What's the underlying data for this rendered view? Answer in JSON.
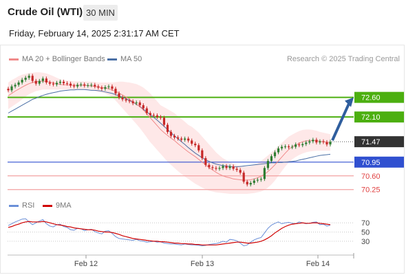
{
  "header": {
    "title": "Crude Oil (WTI)",
    "timeframe": "30 MIN",
    "datetime": "Friday, February 14, 2025 2:31:17 AM CET"
  },
  "legend": {
    "ma20": "MA 20 + Bollinger Bands",
    "ma50": "MA 50",
    "credit": "Research © 2025 Trading Central",
    "rsi": "RSI",
    "rsi_ma": "9MA"
  },
  "colors": {
    "up": "#2e7d32",
    "down": "#c62828",
    "ma20": "#f08a8a",
    "ma50": "#4a6fa5",
    "resistance": "#4caf10",
    "pivot": "#3050d0",
    "support": "#f2a0a0",
    "price": "#333333",
    "arrow": "#2f5e9e",
    "rsi": "#6a8fd8",
    "rsi_ma": "#d00000"
  },
  "chart_data": {
    "type": "candlestick",
    "x_ticks": [
      "Feb 12",
      "Feb 13",
      "Feb 14"
    ],
    "levels": [
      {
        "value": 72.6,
        "label": "72.60",
        "kind": "resistance"
      },
      {
        "value": 72.1,
        "label": "72.10",
        "kind": "resistance"
      },
      {
        "value": 71.47,
        "label": "71.47",
        "kind": "price"
      },
      {
        "value": 70.95,
        "label": "70.95",
        "kind": "pivot"
      },
      {
        "value": 70.6,
        "label": "70.60",
        "kind": "support"
      },
      {
        "value": 70.25,
        "label": "70.25",
        "kind": "support"
      }
    ],
    "ylim": [
      70.0,
      73.4
    ],
    "close": [
      72.78,
      72.88,
      72.92,
      72.98,
      73.05,
      73.1,
      73.15,
      73.02,
      72.95,
      73.02,
      73.08,
      72.98,
      72.95,
      72.93,
      72.97,
      73.0,
      72.96,
      72.95,
      72.9,
      72.88,
      72.92,
      72.93,
      72.9,
      72.91,
      72.92,
      72.88,
      72.85,
      72.82,
      72.86,
      72.88,
      72.82,
      72.7,
      72.6,
      72.55,
      72.52,
      72.5,
      72.45,
      72.47,
      72.4,
      72.32,
      72.2,
      72.15,
      72.14,
      72.1,
      72.08,
      71.9,
      71.72,
      71.62,
      71.58,
      71.55,
      71.52,
      71.55,
      71.5,
      71.42,
      71.38,
      71.25,
      71.05,
      70.88,
      70.82,
      70.8,
      70.78,
      70.8,
      70.85,
      70.8,
      70.84,
      70.78,
      70.75,
      70.68,
      70.45,
      70.38,
      70.42,
      70.48,
      70.5,
      70.52,
      70.8,
      70.98,
      71.1,
      71.2,
      71.3,
      71.34,
      71.35,
      71.33,
      71.34,
      71.4,
      71.38,
      71.41,
      71.45,
      71.48,
      71.52,
      71.45,
      71.48,
      71.46,
      71.4,
      71.47
    ],
    "bollinger_upper": [
      72.98,
      73.04,
      73.09,
      73.14,
      73.18,
      73.2,
      73.22,
      73.23,
      73.24,
      73.24,
      73.23,
      73.21,
      73.18,
      73.14,
      73.1,
      73.06,
      73.04,
      73.03,
      73.02,
      73.01,
      73.01,
      73.01,
      73.01,
      73.0,
      73.0,
      72.99,
      72.98,
      72.98,
      72.98,
      72.98,
      72.98,
      72.99,
      73.0,
      73.0,
      72.99,
      72.98,
      72.96,
      72.94,
      72.9,
      72.85,
      72.78,
      72.7,
      72.6,
      72.5,
      72.4,
      72.35,
      72.3,
      72.25,
      72.2,
      72.12,
      72.05,
      71.98,
      71.9,
      71.85,
      71.78,
      71.7,
      71.6,
      71.5,
      71.4,
      71.3,
      71.2,
      71.12,
      71.05,
      71.0,
      70.95,
      70.9,
      70.88,
      70.86,
      70.84,
      70.84,
      70.85,
      70.88,
      70.92,
      70.98,
      71.05,
      71.12,
      71.2,
      71.28,
      71.36,
      71.44,
      71.52,
      71.6,
      71.65,
      71.7,
      71.74,
      71.77,
      71.78,
      71.78,
      71.77,
      71.75,
      71.72,
      71.7,
      71.68,
      71.66
    ],
    "bollinger_lower": [
      72.3,
      72.36,
      72.42,
      72.48,
      72.55,
      72.62,
      72.68,
      72.72,
      72.76,
      72.78,
      72.8,
      72.8,
      72.8,
      72.8,
      72.8,
      72.8,
      72.8,
      72.8,
      72.8,
      72.8,
      72.8,
      72.8,
      72.8,
      72.79,
      72.78,
      72.76,
      72.74,
      72.72,
      72.7,
      72.66,
      72.6,
      72.52,
      72.42,
      72.32,
      72.22,
      72.12,
      72.02,
      71.92,
      71.82,
      71.7,
      71.58,
      71.46,
      71.36,
      71.26,
      71.16,
      71.06,
      70.96,
      70.88,
      70.8,
      70.72,
      70.65,
      70.58,
      70.52,
      70.46,
      70.4,
      70.35,
      70.3,
      70.26,
      70.22,
      70.2,
      70.18,
      70.17,
      70.16,
      70.15,
      70.14,
      70.14,
      70.14,
      70.14,
      70.14,
      70.14,
      70.15,
      70.16,
      70.18,
      70.2,
      70.24,
      70.3,
      70.38,
      70.48,
      70.6,
      70.72,
      70.84,
      70.94,
      71.02,
      71.08,
      71.13,
      71.17,
      71.2,
      71.22,
      71.23,
      71.24,
      71.24,
      71.24,
      71.24,
      71.24
    ],
    "ma20": [
      72.64,
      72.7,
      72.76,
      72.81,
      72.86,
      72.91,
      72.95,
      72.98,
      73.0,
      73.01,
      73.01,
      73.01,
      72.99,
      72.97,
      72.95,
      72.93,
      72.92,
      72.92,
      72.91,
      72.91,
      72.91,
      72.91,
      72.91,
      72.9,
      72.89,
      72.88,
      72.86,
      72.85,
      72.84,
      72.82,
      72.79,
      72.76,
      72.71,
      72.66,
      72.61,
      72.55,
      72.49,
      72.43,
      72.36,
      72.28,
      72.18,
      72.08,
      71.98,
      71.88,
      71.78,
      71.7,
      71.63,
      71.56,
      71.5,
      71.42,
      71.35,
      71.28,
      71.21,
      71.15,
      71.09,
      71.02,
      70.95,
      70.88,
      70.81,
      70.75,
      70.69,
      70.64,
      70.6,
      70.57,
      70.55,
      70.52,
      70.51,
      70.5,
      70.49,
      70.49,
      70.5,
      70.52,
      70.55,
      70.59,
      70.64,
      70.71,
      70.79,
      70.88,
      70.98,
      71.08,
      71.18,
      71.27,
      71.34,
      71.39,
      71.43,
      71.47,
      71.49,
      71.5,
      71.5,
      71.5,
      71.48,
      71.47,
      71.46,
      71.45
    ],
    "ma50": [
      72.2,
      72.25,
      72.3,
      72.35,
      72.4,
      72.45,
      72.5,
      72.55,
      72.58,
      72.62,
      72.65,
      72.68,
      72.7,
      72.72,
      72.74,
      72.76,
      72.77,
      72.78,
      72.79,
      72.79,
      72.8,
      72.8,
      72.8,
      72.79,
      72.78,
      72.78,
      72.77,
      72.76,
      72.74,
      72.72,
      72.7,
      72.67,
      72.64,
      72.6,
      72.57,
      72.52,
      72.48,
      72.42,
      72.37,
      72.3,
      72.23,
      72.16,
      72.09,
      72.02,
      71.94,
      71.86,
      71.78,
      71.7,
      71.62,
      71.55,
      71.47,
      71.4,
      71.32,
      71.25,
      71.18,
      71.12,
      71.06,
      71.01,
      70.97,
      70.93,
      70.9,
      70.88,
      70.86,
      70.85,
      70.84,
      70.83,
      70.83,
      70.84,
      70.85,
      70.86,
      70.87,
      70.88,
      70.89,
      70.9,
      70.91,
      70.92,
      70.93,
      70.93,
      70.94,
      70.94,
      70.95,
      70.96,
      70.97,
      70.98,
      71.0,
      71.02,
      71.04,
      71.06,
      71.08,
      71.1,
      71.12,
      71.13,
      71.14,
      71.15
    ],
    "projection": {
      "from": 71.47,
      "to": 72.6
    },
    "rsi": {
      "ylim": [
        0,
        100
      ],
      "levels": [
        70,
        50,
        30
      ],
      "rsi": [
        64,
        68,
        72,
        75,
        78,
        79,
        72,
        66,
        70,
        74,
        77,
        68,
        63,
        61,
        66,
        67,
        62,
        60,
        55,
        54,
        58,
        57,
        53,
        55,
        56,
        51,
        48,
        46,
        52,
        53,
        47,
        40,
        36,
        35,
        34,
        33,
        32,
        34,
        31,
        30,
        28,
        29,
        30,
        28,
        29,
        26,
        25,
        24,
        24,
        23,
        22,
        24,
        23,
        22,
        22,
        21,
        20,
        21,
        23,
        24,
        25,
        27,
        30,
        28,
        34,
        33,
        31,
        26,
        20,
        22,
        28,
        33,
        36,
        38,
        48,
        58,
        65,
        69,
        72,
        68,
        70,
        71,
        69,
        68,
        72,
        70,
        68,
        69,
        71,
        72,
        66,
        67,
        63,
        65
      ],
      "ma": [
        60,
        62,
        65,
        67,
        70,
        72,
        73,
        72,
        72,
        72,
        73,
        72,
        70,
        68,
        66,
        65,
        64,
        62,
        61,
        59,
        58,
        57,
        56,
        55,
        55,
        54,
        52,
        51,
        50,
        50,
        49,
        47,
        45,
        42,
        40,
        38,
        36,
        35,
        34,
        33,
        32,
        31,
        30,
        30,
        29,
        29,
        28,
        27,
        26,
        26,
        25,
        25,
        24,
        24,
        23,
        23,
        22,
        22,
        22,
        22,
        22,
        23,
        24,
        25,
        26,
        27,
        28,
        28,
        27,
        26,
        26,
        27,
        28,
        30,
        33,
        37,
        42,
        48,
        53,
        58,
        62,
        65,
        67,
        68,
        69,
        70,
        69,
        69,
        70,
        70,
        69,
        68,
        67,
        66
      ]
    }
  }
}
